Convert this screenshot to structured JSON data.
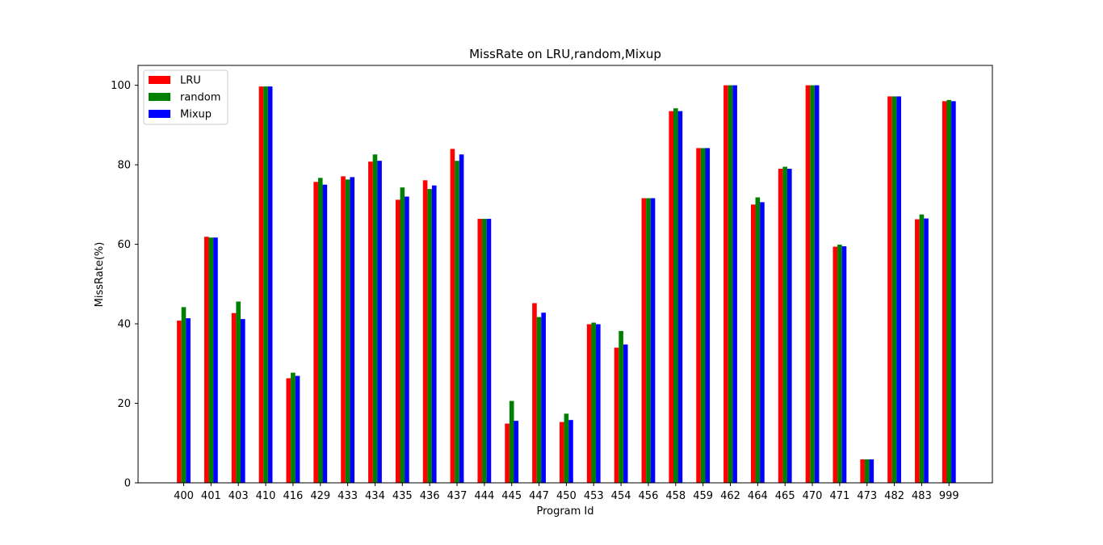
{
  "chart_data": {
    "type": "bar",
    "title": "MissRate on LRU,random,Mixup",
    "xlabel": "Program Id",
    "ylabel": "MissRate(%)",
    "ylim": [
      0,
      105
    ],
    "yticks": [
      0,
      20,
      40,
      60,
      80,
      100
    ],
    "grid": false,
    "legend_position": "top-left",
    "categories": [
      "400",
      "401",
      "403",
      "410",
      "416",
      "429",
      "433",
      "434",
      "435",
      "436",
      "437",
      "444",
      "445",
      "447",
      "450",
      "453",
      "454",
      "456",
      "458",
      "459",
      "462",
      "464",
      "465",
      "470",
      "471",
      "473",
      "482",
      "483",
      "999"
    ],
    "series": [
      {
        "name": "LRU",
        "color": "#ff0000",
        "values": [
          40.8,
          61.9,
          42.7,
          99.7,
          26.3,
          75.7,
          77.1,
          80.8,
          71.2,
          76.1,
          84.0,
          66.4,
          14.9,
          45.2,
          15.3,
          39.9,
          34.0,
          71.6,
          93.5,
          84.2,
          100.0,
          70.0,
          79.0,
          100.0,
          59.4,
          5.9,
          97.2,
          66.3,
          96.0
        ]
      },
      {
        "name": "random",
        "color": "#008000",
        "values": [
          44.2,
          61.7,
          45.6,
          99.7,
          27.7,
          76.7,
          76.3,
          82.6,
          74.3,
          73.9,
          81.0,
          66.4,
          20.6,
          41.7,
          17.4,
          40.3,
          38.2,
          71.6,
          94.2,
          84.2,
          100.0,
          71.8,
          79.5,
          100.0,
          59.9,
          5.9,
          97.2,
          67.5,
          96.3
        ]
      },
      {
        "name": "Mixup",
        "color": "#0000ff",
        "values": [
          41.4,
          61.7,
          41.2,
          99.7,
          26.9,
          75.0,
          76.9,
          81.0,
          72.0,
          74.8,
          82.6,
          66.4,
          15.6,
          42.8,
          15.8,
          39.9,
          34.8,
          71.6,
          93.5,
          84.2,
          100.0,
          70.6,
          79.0,
          100.0,
          59.5,
          5.9,
          97.2,
          66.5,
          96.0
        ]
      }
    ]
  }
}
